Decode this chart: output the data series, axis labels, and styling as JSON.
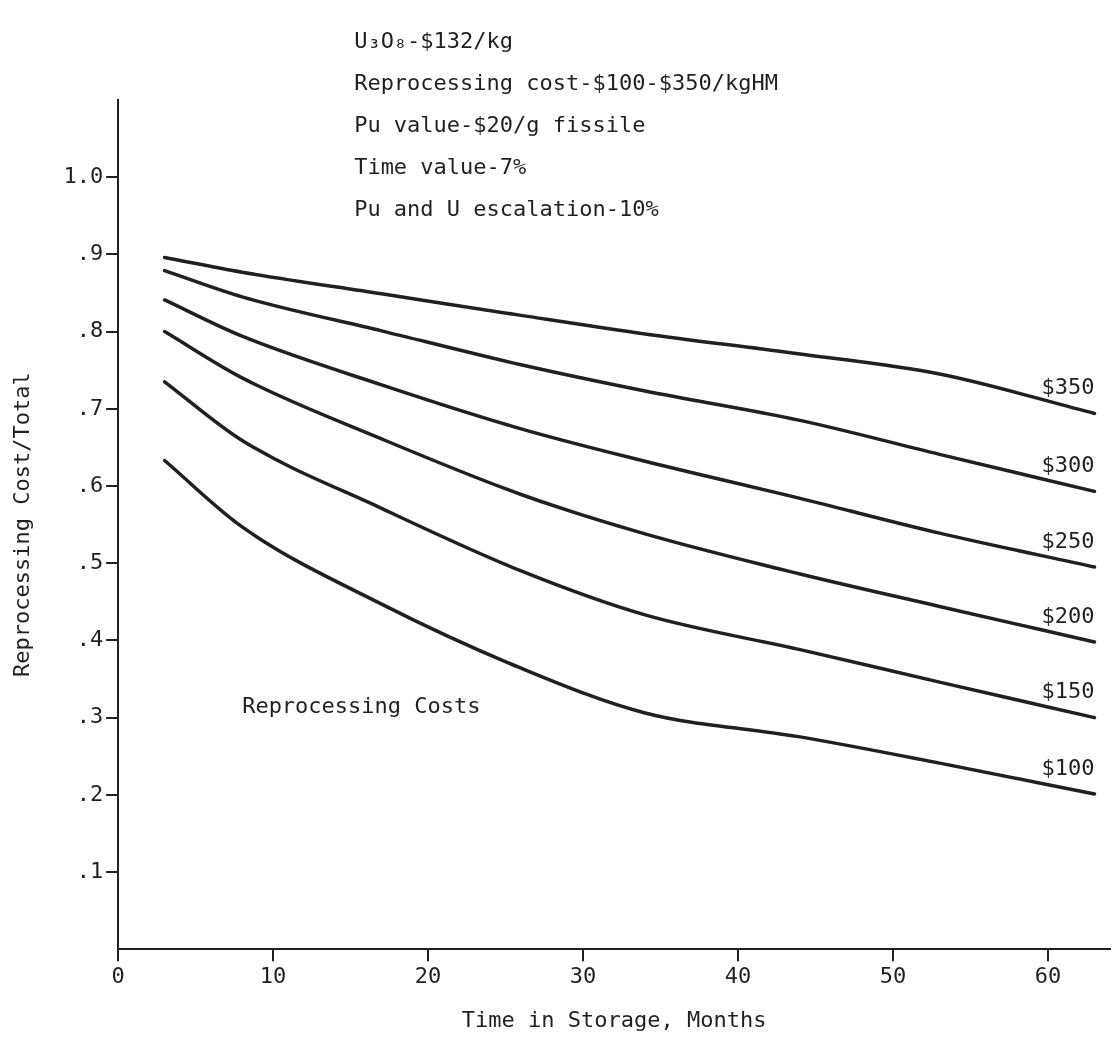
{
  "chart_data": {
    "type": "line",
    "xlabel": "Time in Storage, Months",
    "ylabel": "Reprocessing Cost/Total",
    "annotations": [
      "U₃O₈-$132/kg",
      "Reprocessing cost-$100-$350/kgHM",
      "Pu value-$20/g fissile",
      "Time value-7%",
      "Pu and U escalation-10%",
      "Reprocessing Costs"
    ],
    "xlim": [
      0,
      64
    ],
    "xticks": [
      0,
      10,
      20,
      30,
      40,
      50,
      60
    ],
    "ylim": [
      0,
      1.1
    ],
    "yticks": [
      {
        "value": 0.1,
        "label": ".1"
      },
      {
        "value": 0.2,
        "label": ".2"
      },
      {
        "value": 0.3,
        "label": ".3"
      },
      {
        "value": 0.4,
        "label": ".4"
      },
      {
        "value": 0.5,
        "label": ".5"
      },
      {
        "value": 0.6,
        "label": ".6"
      },
      {
        "value": 0.7,
        "label": ".7"
      },
      {
        "value": 0.8,
        "label": ".8"
      },
      {
        "value": 0.9,
        "label": ".9"
      },
      {
        "value": 1,
        "label": "1.0"
      }
    ],
    "x": [
      3,
      8,
      17,
      26,
      34,
      44,
      53,
      63
    ],
    "grid": false,
    "legend": false,
    "marker": "none",
    "line_style": "solid",
    "series": [
      {
        "name": "$350",
        "color": "#231f20",
        "values": [
          0.896,
          0.877,
          0.849,
          0.821,
          0.797,
          0.771,
          0.745,
          0.694
        ]
      },
      {
        "name": "$300",
        "color": "#231f20",
        "values": [
          0.879,
          0.845,
          0.801,
          0.757,
          0.723,
          0.685,
          0.641,
          0.593
        ]
      },
      {
        "name": "$250",
        "color": "#231f20",
        "values": [
          0.841,
          0.794,
          0.731,
          0.674,
          0.632,
          0.584,
          0.539,
          0.495
        ]
      },
      {
        "name": "$200",
        "color": "#231f20",
        "values": [
          0.8,
          0.74,
          0.661,
          0.589,
          0.538,
          0.486,
          0.444,
          0.398
        ]
      },
      {
        "name": "$150",
        "color": "#231f20",
        "values": [
          0.735,
          0.659,
          0.571,
          0.49,
          0.433,
          0.388,
          0.346,
          0.3
        ]
      },
      {
        "name": "$100",
        "color": "#231f20",
        "values": [
          0.633,
          0.547,
          0.447,
          0.364,
          0.306,
          0.275,
          0.241,
          0.201
        ]
      }
    ]
  }
}
